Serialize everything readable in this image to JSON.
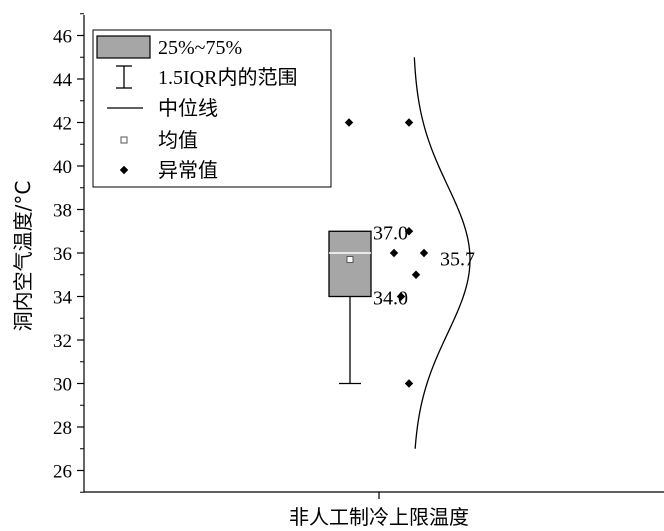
{
  "chart_data": {
    "type": "box",
    "ylabel": "洞内空气温度/°C",
    "xlabel": "",
    "categories": [
      "非人工制冷上限温度"
    ],
    "ylim": [
      25,
      47
    ],
    "yticks": [
      26,
      28,
      30,
      32,
      34,
      36,
      38,
      40,
      42,
      44,
      46
    ],
    "box": {
      "q1": 34.0,
      "q3": 37.0,
      "median": 36.0,
      "mean": 35.7,
      "whisker_low": 30.0,
      "whisker_high": 37.0,
      "q1_label": "34.0",
      "q3_label": "37.0",
      "mean_label": "35.7",
      "fill_color": "#a6a6a6"
    },
    "outliers_left": [
      42
    ],
    "outliers_right": [
      42,
      37,
      36,
      36,
      35,
      34,
      30
    ],
    "distribution_curve": {
      "mean": 35.7,
      "sd": 3.4,
      "y_from": 27,
      "y_to": 45
    },
    "legend": {
      "position": "top-left",
      "items": [
        {
          "symbol": "box",
          "label": "25%~75%"
        },
        {
          "symbol": "whisker",
          "label": "1.5IQR内的范围"
        },
        {
          "symbol": "line",
          "label": "中位线"
        },
        {
          "symbol": "square",
          "label": "均值"
        },
        {
          "symbol": "diamond",
          "label": "异常值"
        }
      ]
    }
  }
}
